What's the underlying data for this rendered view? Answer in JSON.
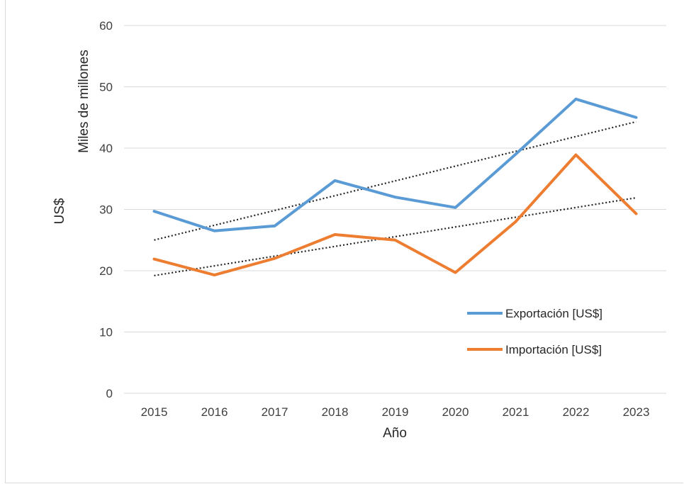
{
  "chart_data": {
    "type": "line",
    "title": "",
    "xlabel": "Año",
    "ylabel": "US$",
    "ylabel_secondary": "Miles de millones",
    "categories": [
      "2015",
      "2016",
      "2017",
      "2018",
      "2019",
      "2020",
      "2021",
      "2022",
      "2023"
    ],
    "ylim": [
      0,
      60
    ],
    "yticks": [
      0,
      10,
      20,
      30,
      40,
      50,
      60
    ],
    "grid": true,
    "legend_position": "bottom-right",
    "series": [
      {
        "name": "Exportación [US$]",
        "color": "#5b9bd5",
        "values": [
          29.7,
          26.5,
          27.3,
          34.7,
          32.0,
          30.3,
          39.0,
          48.0,
          45.0
        ],
        "trendline": {
          "type": "linear",
          "color": "#262626",
          "start": 25.0,
          "end": 44.3
        }
      },
      {
        "name": "Importación [US$]",
        "color": "#ed7d31",
        "values": [
          21.9,
          19.3,
          22.0,
          25.9,
          25.0,
          19.7,
          28.0,
          38.9,
          29.3
        ],
        "trendline": {
          "type": "linear",
          "color": "#262626",
          "start": 19.2,
          "end": 31.9
        }
      }
    ]
  }
}
